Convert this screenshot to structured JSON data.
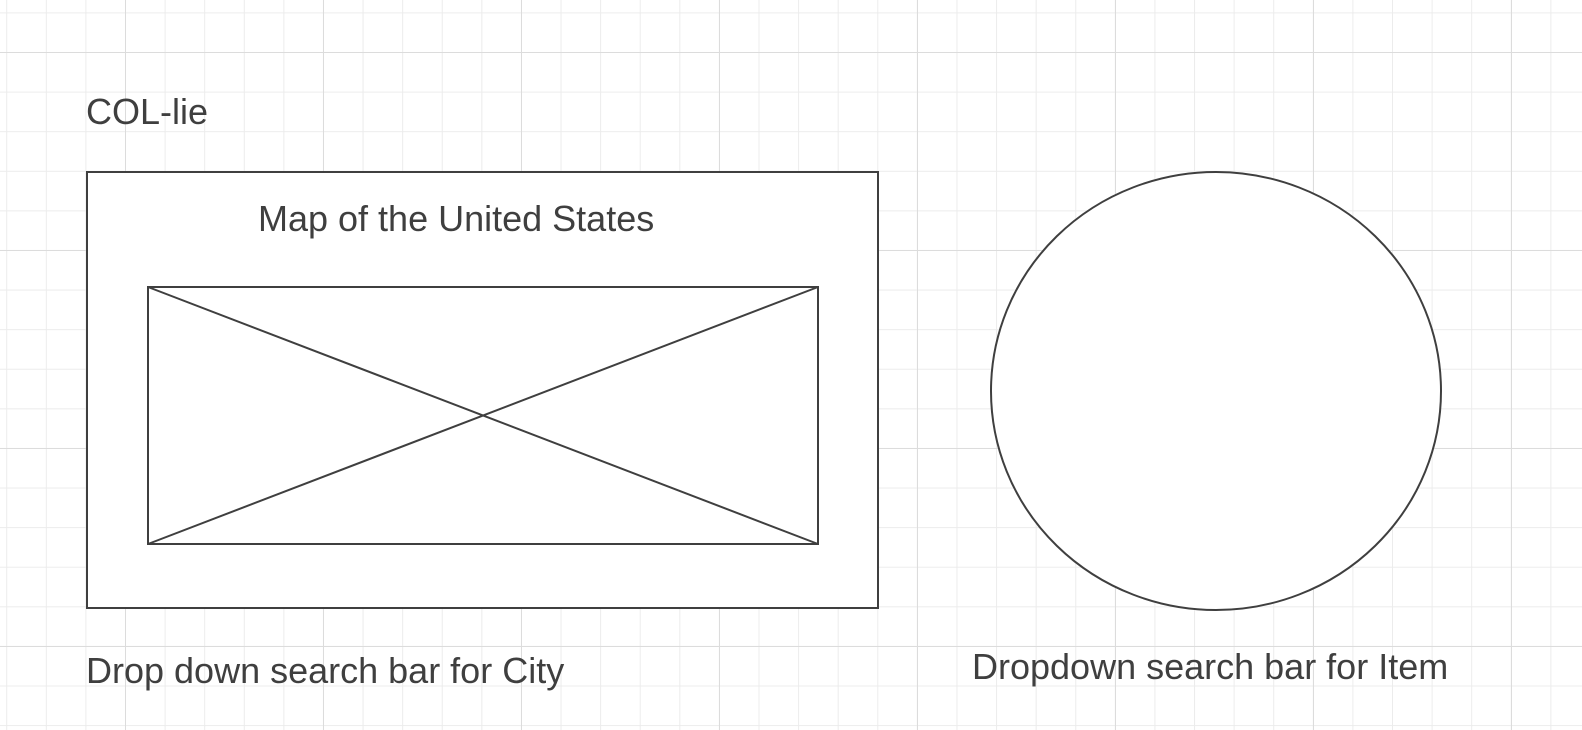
{
  "app": {
    "title": "COL-lie"
  },
  "map_panel": {
    "title": "Map of the United States",
    "image": "image-placeholder-icon"
  },
  "city_search": {
    "label": "Drop down search bar for City"
  },
  "item_search": {
    "label": "Dropdown search bar for Item",
    "shape": "circle"
  },
  "colors": {
    "stroke": "#3f3f3f",
    "text": "#3f3f3f",
    "grid_minor": "#ececec",
    "grid_major": "#dcdcdc",
    "background": "#ffffff"
  }
}
